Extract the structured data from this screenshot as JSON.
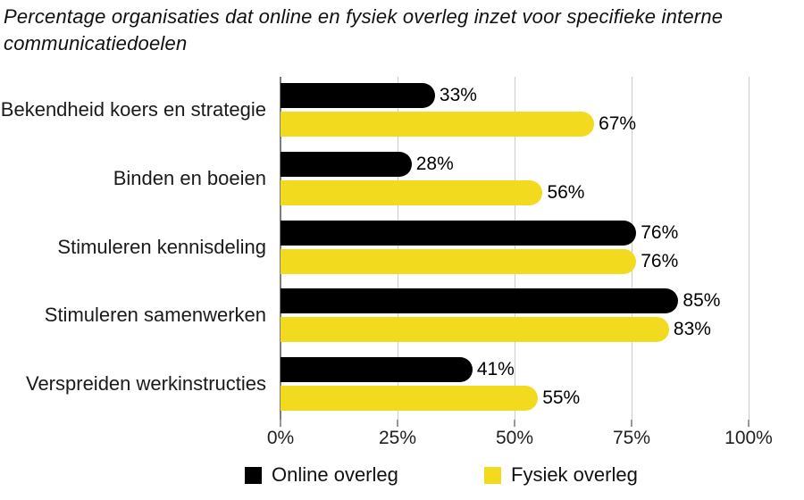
{
  "chart_data": {
    "type": "bar",
    "orientation": "horizontal",
    "title": "Percentage organisaties dat online en fysiek overleg inzet voor specifieke interne communicatiedoelen",
    "title_lines": [
      "Percentage organisaties dat online en fysiek overleg inzet voor specifieke interne",
      "communicatiedoelen"
    ],
    "categories": [
      "Bekendheid koers en strategie",
      "Binden en boeien",
      "Stimuleren kennisdeling",
      "Stimuleren samenwerken",
      "Verspreiden werkinstructies"
    ],
    "series": [
      {
        "key": "online-overleg",
        "name": "Online overleg",
        "color": "#000000",
        "values": [
          33,
          28,
          76,
          85,
          41
        ]
      },
      {
        "key": "fysiek-overleg",
        "name": "Fysiek overleg",
        "color": "#F2DA1E",
        "values": [
          67,
          56,
          76,
          83,
          55
        ]
      }
    ],
    "value_suffix": "%",
    "x_ticks": [
      "0%",
      "25%",
      "50%",
      "75%",
      "100%"
    ],
    "xlim": [
      0,
      100
    ],
    "grid": true,
    "legend_position": "bottom",
    "colors": {
      "grid": "#cccccc",
      "axis": "#7d7d7d",
      "tick": "#9a9a9a",
      "background": "#ffffff",
      "text": "#1a1a1a"
    }
  }
}
